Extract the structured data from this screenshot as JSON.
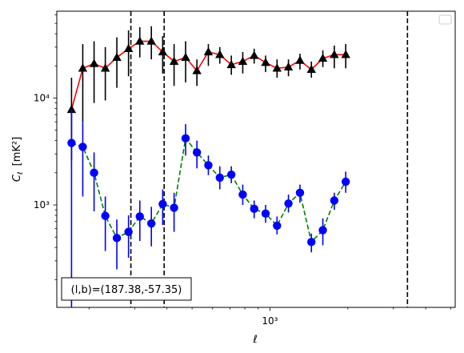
{
  "chart_data": {
    "type": "scatter",
    "xlabel": "ℓ",
    "ylabel": "C",
    "ylabel_sub": "ℓ",
    "ylabel_unit": "[mK²]",
    "xscale": "log",
    "yscale": "log",
    "xlim": [
      150,
      5200
    ],
    "ylim": [
      110,
      65000
    ],
    "x_tick_label": "10³",
    "y_tick_labels": [
      "10⁴",
      "10³"
    ],
    "annotation": "(l,b)=(187.38,-57.35)",
    "legend_placement": "top-right",
    "vlines_x": [
      290,
      390,
      3400
    ],
    "series": [
      {
        "marker": "triangle",
        "line_color": "#ff0000",
        "marker_color": "#000000",
        "errorbar_color": "#000000",
        "linestyle": "solid",
        "points": [
          {
            "x": 171,
            "y": 7800,
            "lo": 2600,
            "hi": 15500
          },
          {
            "x": 189,
            "y": 19000,
            "lo": 6000,
            "hi": 32000
          },
          {
            "x": 209,
            "y": 21000,
            "lo": 9000,
            "hi": 34000
          },
          {
            "x": 231,
            "y": 19000,
            "lo": 9500,
            "hi": 30000
          },
          {
            "x": 256,
            "y": 24000,
            "lo": 12500,
            "hi": 37000
          },
          {
            "x": 284,
            "y": 29000,
            "lo": 16000,
            "hi": 43000
          },
          {
            "x": 314,
            "y": 34000,
            "lo": 24000,
            "hi": 46000
          },
          {
            "x": 348,
            "y": 34000,
            "lo": 23000,
            "hi": 47000
          },
          {
            "x": 385,
            "y": 27000,
            "lo": 17000,
            "hi": 38000
          },
          {
            "x": 426,
            "y": 22000,
            "lo": 13000,
            "hi": 32000
          },
          {
            "x": 472,
            "y": 24000,
            "lo": 14000,
            "hi": 34000
          },
          {
            "x": 522,
            "y": 18000,
            "lo": 13000,
            "hi": 23000
          },
          {
            "x": 578,
            "y": 27000,
            "lo": 20000,
            "hi": 32000
          },
          {
            "x": 640,
            "y": 25500,
            "lo": 21000,
            "hi": 30000
          },
          {
            "x": 709,
            "y": 20500,
            "lo": 16500,
            "hi": 25000
          },
          {
            "x": 785,
            "y": 22000,
            "lo": 17000,
            "hi": 27000
          },
          {
            "x": 869,
            "y": 25000,
            "lo": 21000,
            "hi": 29000
          },
          {
            "x": 962,
            "y": 21500,
            "lo": 17500,
            "hi": 25000
          },
          {
            "x": 1065,
            "y": 19000,
            "lo": 15500,
            "hi": 23000
          },
          {
            "x": 1179,
            "y": 19500,
            "lo": 16000,
            "hi": 23000
          },
          {
            "x": 1306,
            "y": 22500,
            "lo": 18500,
            "hi": 26000
          },
          {
            "x": 1446,
            "y": 18500,
            "lo": 15500,
            "hi": 22000
          },
          {
            "x": 1601,
            "y": 23500,
            "lo": 19500,
            "hi": 28000
          },
          {
            "x": 1773,
            "y": 25500,
            "lo": 19000,
            "hi": 31000
          },
          {
            "x": 1963,
            "y": 25500,
            "lo": 19000,
            "hi": 32000
          }
        ]
      },
      {
        "marker": "circle",
        "line_color": "#008000",
        "marker_color": "#0000ff",
        "errorbar_color": "#0000ff",
        "linestyle": "dashed",
        "points": [
          {
            "x": 171,
            "y": 3800,
            "lo": 110,
            "hi": 7800
          },
          {
            "x": 189,
            "y": 3500,
            "lo": 1200,
            "hi": 6000
          },
          {
            "x": 209,
            "y": 2000,
            "lo": 870,
            "hi": 3100
          },
          {
            "x": 231,
            "y": 790,
            "lo": 370,
            "hi": 1200
          },
          {
            "x": 256,
            "y": 490,
            "lo": 250,
            "hi": 730
          },
          {
            "x": 284,
            "y": 560,
            "lo": 320,
            "hi": 800
          },
          {
            "x": 314,
            "y": 780,
            "lo": 460,
            "hi": 1100
          },
          {
            "x": 348,
            "y": 670,
            "lo": 410,
            "hi": 960
          },
          {
            "x": 385,
            "y": 1020,
            "lo": 650,
            "hi": 1400
          },
          {
            "x": 426,
            "y": 940,
            "lo": 560,
            "hi": 1300
          },
          {
            "x": 472,
            "y": 4200,
            "lo": 2900,
            "hi": 5700
          },
          {
            "x": 522,
            "y": 3100,
            "lo": 2200,
            "hi": 4000
          },
          {
            "x": 578,
            "y": 2350,
            "lo": 1900,
            "hi": 2900
          },
          {
            "x": 640,
            "y": 1800,
            "lo": 1400,
            "hi": 2300
          },
          {
            "x": 709,
            "y": 1920,
            "lo": 1600,
            "hi": 2300
          },
          {
            "x": 785,
            "y": 1250,
            "lo": 1000,
            "hi": 1550
          },
          {
            "x": 869,
            "y": 920,
            "lo": 750,
            "hi": 1100
          },
          {
            "x": 962,
            "y": 830,
            "lo": 680,
            "hi": 1000
          },
          {
            "x": 1065,
            "y": 640,
            "lo": 530,
            "hi": 780
          },
          {
            "x": 1179,
            "y": 1030,
            "lo": 850,
            "hi": 1250
          },
          {
            "x": 1306,
            "y": 1300,
            "lo": 1050,
            "hi": 1550
          },
          {
            "x": 1446,
            "y": 450,
            "lo": 360,
            "hi": 540
          },
          {
            "x": 1601,
            "y": 580,
            "lo": 420,
            "hi": 750
          },
          {
            "x": 1773,
            "y": 1100,
            "lo": 900,
            "hi": 1300
          },
          {
            "x": 1963,
            "y": 1650,
            "lo": 1300,
            "hi": 2050
          }
        ]
      }
    ]
  }
}
